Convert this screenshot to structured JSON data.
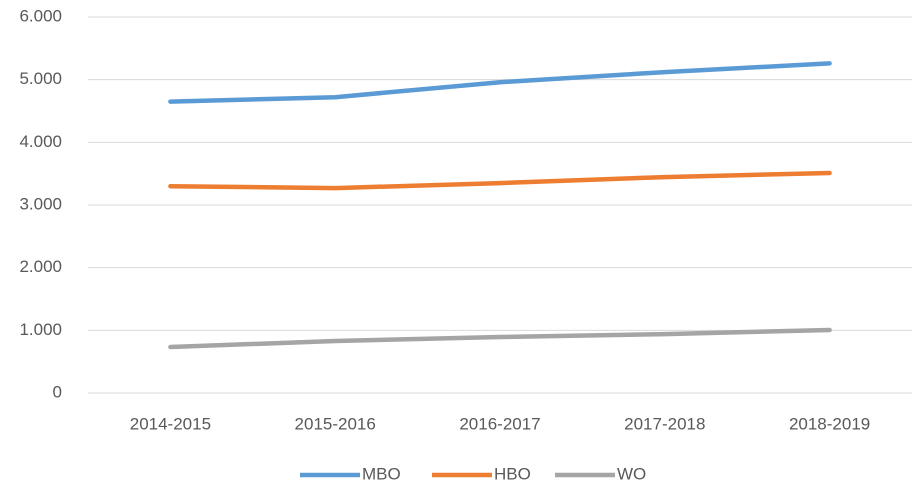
{
  "chart_data": {
    "type": "line",
    "categories": [
      "2014-2015",
      "2015-2016",
      "2016-2017",
      "2017-2018",
      "2018-2019"
    ],
    "series": [
      {
        "name": "MBO",
        "color": "#5b9bd5",
        "values": [
          4650,
          4720,
          4960,
          5120,
          5260
        ]
      },
      {
        "name": "HBO",
        "color": "#ed7d31",
        "values": [
          3300,
          3270,
          3350,
          3445,
          3510
        ]
      },
      {
        "name": "WO",
        "color": "#a5a5a5",
        "values": [
          734,
          830,
          893,
          940,
          1005
        ]
      }
    ],
    "ylim": [
      0,
      6000
    ],
    "yticks": [
      0,
      {
        "value": 1000,
        "label": "1.000"
      },
      {
        "value": 2000,
        "label": "2.000"
      },
      {
        "value": 3000,
        "label": "3.000"
      },
      {
        "value": 4000,
        "label": "4.000"
      },
      {
        "value": 5000,
        "label": "5.000"
      },
      {
        "value": 6000,
        "label": "6.000"
      }
    ],
    "grid": true,
    "legend": "bottom"
  }
}
